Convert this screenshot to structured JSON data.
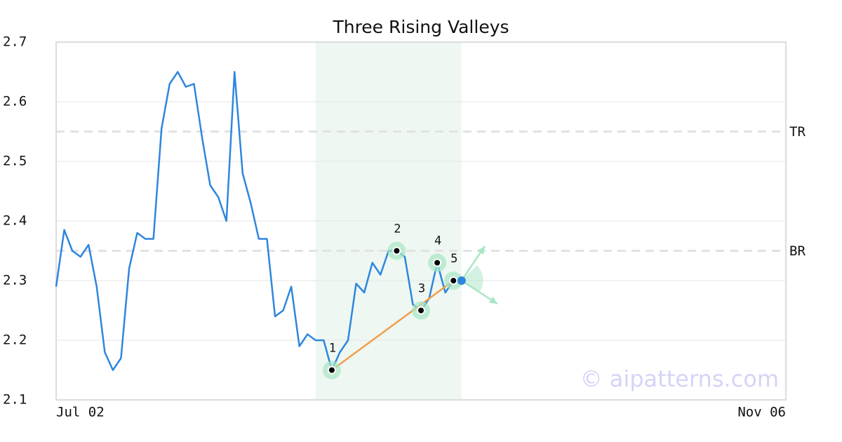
{
  "chart_data": {
    "type": "line",
    "title": "Three Rising Valleys",
    "categories": [
      "Jul 02",
      null,
      null,
      null,
      null,
      null,
      null,
      null,
      null,
      null,
      null,
      null,
      null,
      null,
      null,
      null,
      null,
      null,
      null,
      null,
      null,
      null,
      null,
      null,
      null,
      null,
      null,
      null,
      null,
      null,
      null,
      null,
      null,
      null,
      null,
      null,
      null,
      null,
      null,
      null,
      null,
      null,
      null,
      null,
      null,
      null,
      null,
      null,
      null,
      null,
      null,
      null,
      null,
      null,
      null,
      null,
      null,
      null,
      null,
      null,
      null,
      null,
      null,
      null,
      null,
      null,
      null,
      null,
      null,
      null,
      null,
      null,
      null,
      null,
      null,
      null,
      null,
      null,
      null,
      null,
      null,
      null,
      null,
      null,
      null,
      null,
      null,
      null,
      null,
      null,
      "Nov 06"
    ],
    "values": [
      2.29,
      2.385,
      2.35,
      2.34,
      2.36,
      2.29,
      2.18,
      2.15,
      2.17,
      2.32,
      2.38,
      2.37,
      2.37,
      2.555,
      2.63,
      2.65,
      2.625,
      2.63,
      2.54,
      2.46,
      2.44,
      2.4,
      2.65,
      2.48,
      2.43,
      2.37,
      2.37,
      2.24,
      2.25,
      2.29,
      2.19,
      2.21,
      2.2,
      2.2,
      2.15,
      2.18,
      2.2,
      2.295,
      2.28,
      2.33,
      2.31,
      2.35,
      2.35,
      2.34,
      2.26,
      2.25,
      2.27,
      2.33,
      2.28,
      2.3,
      2.3,
      null,
      null,
      null,
      null,
      null,
      null,
      null,
      null,
      null,
      null,
      null,
      null,
      null,
      null,
      null,
      null,
      null,
      null,
      null,
      null,
      null,
      null,
      null,
      null,
      null,
      null,
      null,
      null,
      null,
      null,
      null,
      null,
      null,
      null,
      null,
      null,
      null,
      null,
      null,
      null
    ],
    "color": "#2e86de",
    "ylim": [
      2.1,
      2.7
    ],
    "yticks": [
      2.1,
      2.2,
      2.3,
      2.4,
      2.5,
      2.6,
      2.7
    ],
    "grid": true,
    "highlight": {
      "from": 32,
      "to": 50,
      "color": "#eef7f2"
    },
    "levels": [
      {
        "label": "TR",
        "value": 2.55
      },
      {
        "label": "BR",
        "value": 2.35
      }
    ],
    "pattern": {
      "color": "#a8e6c4",
      "points": [
        {
          "label": "1",
          "index": 34
        },
        {
          "label": "2",
          "index": 42
        },
        {
          "label": "3",
          "index": 45
        },
        {
          "label": "4",
          "index": 47
        },
        {
          "label": "5",
          "index": 49
        }
      ]
    },
    "trendline": {
      "from": 0,
      "to": 4,
      "color": "#f0a04b"
    },
    "watermark": "© aipatterns.com"
  }
}
